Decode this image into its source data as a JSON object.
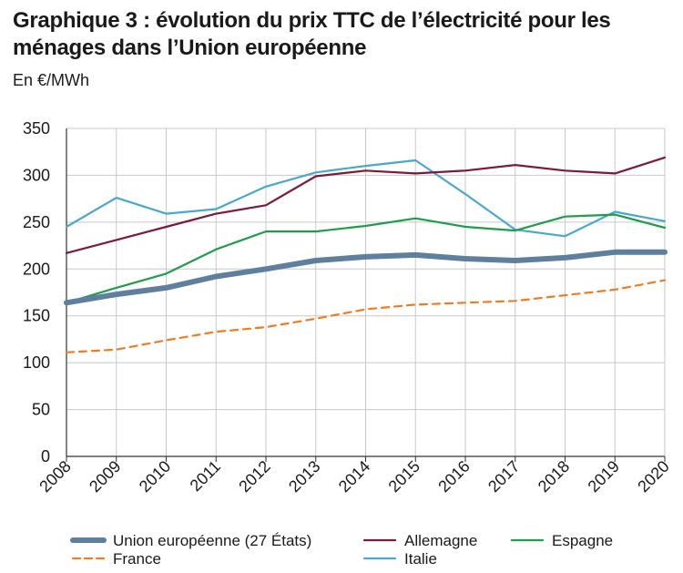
{
  "header": {
    "title": "Graphique 3 : évolution du prix TTC de l’électricité pour les ménages dans l’Union européenne",
    "subtitle": "En €/MWh"
  },
  "chart_data": {
    "type": "line",
    "title": "Graphique 3 : évolution du prix TTC de l’électricité pour les ménages dans l’Union européenne",
    "ylabel": "En €/MWh",
    "xlabel": "",
    "categories": [
      "2008",
      "2009",
      "2010",
      "2011",
      "2012",
      "2013",
      "2014",
      "2015",
      "2016",
      "2017",
      "2018",
      "2019",
      "2020"
    ],
    "ylim": [
      0,
      350
    ],
    "yticks": [
      0,
      50,
      100,
      150,
      200,
      250,
      300,
      350
    ],
    "grid": true,
    "legend_position": "bottom",
    "series": [
      {
        "name": "Union européenne (27 États)",
        "color": "#5e7f9e",
        "style": "thick",
        "values": [
          164,
          173,
          180,
          192,
          200,
          209,
          213,
          215,
          211,
          209,
          212,
          218,
          218
        ]
      },
      {
        "name": "Allemagne",
        "color": "#7b1a3c",
        "style": "solid",
        "values": [
          217,
          231,
          245,
          259,
          268,
          299,
          305,
          302,
          305,
          311,
          305,
          302,
          319
        ]
      },
      {
        "name": "Espagne",
        "color": "#1f9d4a",
        "style": "solid",
        "values": [
          164,
          180,
          195,
          221,
          240,
          240,
          246,
          254,
          245,
          241,
          256,
          258,
          244
        ]
      },
      {
        "name": "France",
        "color": "#f07c22",
        "style": "dashed",
        "values": [
          111,
          114,
          124,
          133,
          138,
          147,
          157,
          162,
          164,
          166,
          172,
          178,
          188
        ]
      },
      {
        "name": "Italie",
        "color": "#4aa8cf",
        "style": "solid",
        "values": [
          245,
          276,
          259,
          264,
          288,
          303,
          310,
          316,
          280,
          242,
          235,
          261,
          251
        ]
      }
    ]
  }
}
